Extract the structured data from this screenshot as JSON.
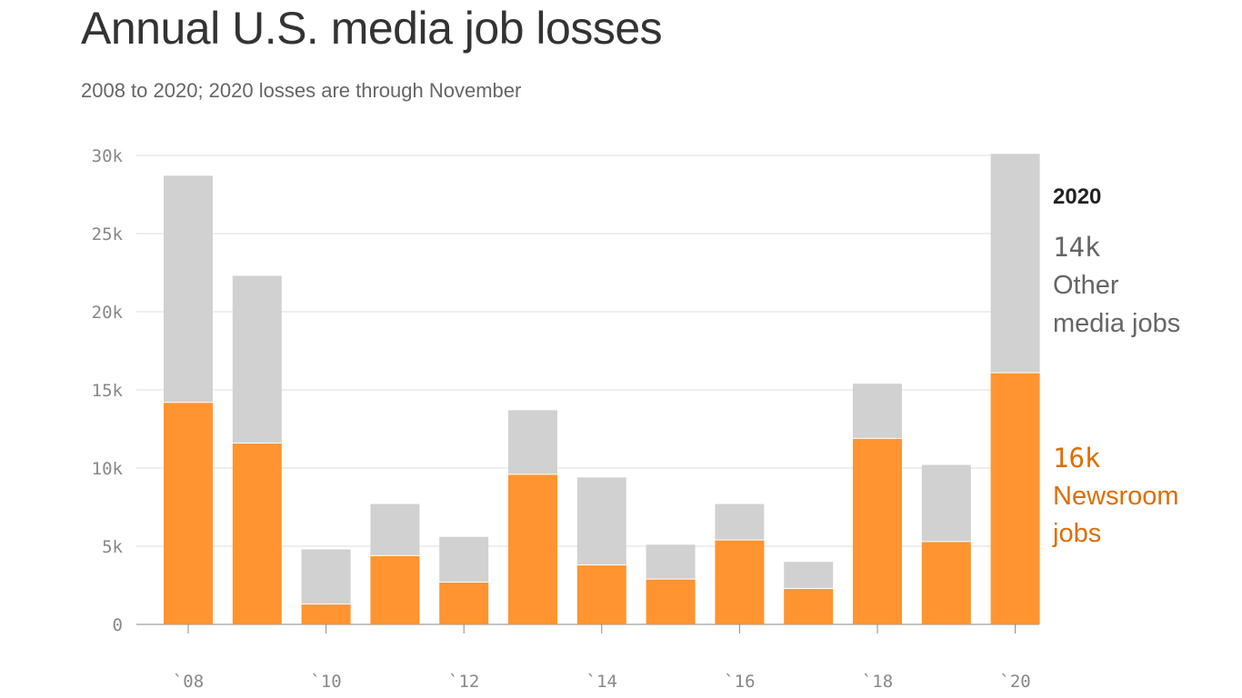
{
  "chart_data": {
    "type": "bar",
    "stacked": true,
    "title": "Annual U.S. media job losses",
    "subtitle": "2008 to 2020; 2020 losses are through November",
    "categories": [
      "2008",
      "2009",
      "2010",
      "2011",
      "2012",
      "2013",
      "2014",
      "2015",
      "2016",
      "2017",
      "2018",
      "2019",
      "2020"
    ],
    "x_tick_labels": [
      "`08",
      "`10",
      "`12",
      "`14",
      "`16",
      "`18",
      "`20"
    ],
    "x_tick_categories": [
      "2008",
      "2010",
      "2012",
      "2014",
      "2016",
      "2018",
      "2020"
    ],
    "y_tick_labels": [
      "0",
      "5k",
      "10k",
      "15k",
      "20k",
      "25k",
      "30k"
    ],
    "y_ticks": [
      0,
      5000,
      10000,
      15000,
      20000,
      25000,
      30000
    ],
    "ylim": [
      0,
      30000
    ],
    "grid": true,
    "series": [
      {
        "name": "Newsroom jobs",
        "color": "#ff9430",
        "values": [
          14200,
          11600,
          1300,
          4400,
          2700,
          9600,
          3800,
          2900,
          5400,
          2300,
          11900,
          5300,
          16100
        ]
      },
      {
        "name": "Other media jobs",
        "color": "#d0d1d0",
        "values": [
          14500,
          10700,
          3500,
          3300,
          2900,
          4100,
          5600,
          2200,
          2300,
          1700,
          3500,
          4900,
          14000
        ]
      }
    ],
    "annotations": {
      "year": "2020",
      "other_value": "14k",
      "other_label_1": "Other",
      "other_label_2": "media jobs",
      "newsroom_value": "16k",
      "newsroom_label_1": "Newsroom",
      "newsroom_label_2": "jobs",
      "other_color": "#666666",
      "newsroom_color": "#e06d00"
    }
  }
}
